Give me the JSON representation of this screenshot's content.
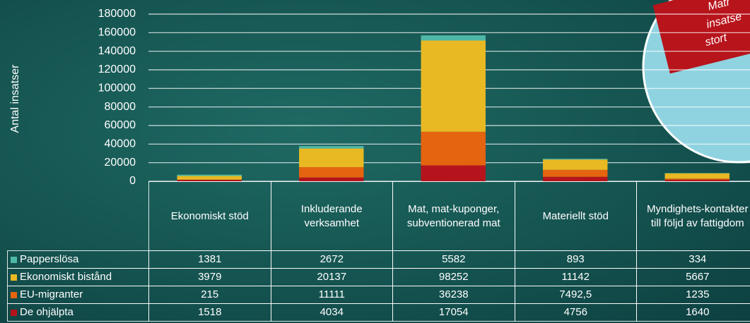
{
  "chart_data": {
    "type": "stacked_bar",
    "y_label": "Antal insatser",
    "categories": [
      "Ekonomiskt stöd",
      "Inkluderande verksamhet",
      "Mat, mat-kuponger, subventionerad mat",
      "Materiellt stöd",
      "Myndighets-kontakter till följd av fattigdom"
    ],
    "series": [
      {
        "name": "Papperslösa",
        "color": "#4fb7a6",
        "values": [
          1381,
          2672,
          5582,
          893,
          334
        ]
      },
      {
        "name": "Ekonomiskt bistånd",
        "color": "#e8b923",
        "values": [
          3979,
          20137,
          98252,
          11142,
          5667
        ]
      },
      {
        "name": "EU-migranter",
        "color": "#e5640f",
        "values": [
          215,
          11111,
          36238,
          7492.5,
          1235
        ],
        "value_labels": [
          "215",
          "11111",
          "36238",
          "7492,5",
          "1235"
        ]
      },
      {
        "name": "De ohjälpta",
        "color": "#b5141c",
        "values": [
          1518,
          4034,
          17054,
          4756,
          1640
        ]
      }
    ],
    "ylim": [
      0,
      180000
    ],
    "yticks": [
      0,
      20000,
      40000,
      60000,
      80000,
      100000,
      120000,
      140000,
      160000,
      180000
    ],
    "grid": true,
    "annotation": [
      "Matr",
      "insatse",
      "stort"
    ]
  }
}
